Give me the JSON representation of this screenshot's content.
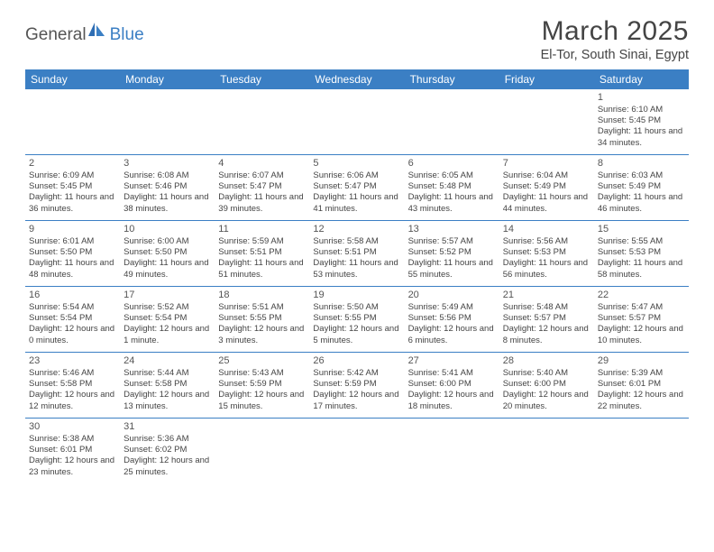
{
  "brand": {
    "name1": "General",
    "name2": "Blue"
  },
  "title": "March 2025",
  "location": "El-Tor, South Sinai, Egypt",
  "colors": {
    "header_bg": "#3b7fc4",
    "header_text": "#ffffff",
    "rule": "#3b7fc4",
    "text": "#444444",
    "background": "#ffffff"
  },
  "weekdays": [
    "Sunday",
    "Monday",
    "Tuesday",
    "Wednesday",
    "Thursday",
    "Friday",
    "Saturday"
  ],
  "weeks": [
    [
      {
        "n": "",
        "t": ""
      },
      {
        "n": "",
        "t": ""
      },
      {
        "n": "",
        "t": ""
      },
      {
        "n": "",
        "t": ""
      },
      {
        "n": "",
        "t": ""
      },
      {
        "n": "",
        "t": ""
      },
      {
        "n": "1",
        "t": "Sunrise: 6:10 AM\nSunset: 5:45 PM\nDaylight: 11 hours and 34 minutes."
      }
    ],
    [
      {
        "n": "2",
        "t": "Sunrise: 6:09 AM\nSunset: 5:45 PM\nDaylight: 11 hours and 36 minutes."
      },
      {
        "n": "3",
        "t": "Sunrise: 6:08 AM\nSunset: 5:46 PM\nDaylight: 11 hours and 38 minutes."
      },
      {
        "n": "4",
        "t": "Sunrise: 6:07 AM\nSunset: 5:47 PM\nDaylight: 11 hours and 39 minutes."
      },
      {
        "n": "5",
        "t": "Sunrise: 6:06 AM\nSunset: 5:47 PM\nDaylight: 11 hours and 41 minutes."
      },
      {
        "n": "6",
        "t": "Sunrise: 6:05 AM\nSunset: 5:48 PM\nDaylight: 11 hours and 43 minutes."
      },
      {
        "n": "7",
        "t": "Sunrise: 6:04 AM\nSunset: 5:49 PM\nDaylight: 11 hours and 44 minutes."
      },
      {
        "n": "8",
        "t": "Sunrise: 6:03 AM\nSunset: 5:49 PM\nDaylight: 11 hours and 46 minutes."
      }
    ],
    [
      {
        "n": "9",
        "t": "Sunrise: 6:01 AM\nSunset: 5:50 PM\nDaylight: 11 hours and 48 minutes."
      },
      {
        "n": "10",
        "t": "Sunrise: 6:00 AM\nSunset: 5:50 PM\nDaylight: 11 hours and 49 minutes."
      },
      {
        "n": "11",
        "t": "Sunrise: 5:59 AM\nSunset: 5:51 PM\nDaylight: 11 hours and 51 minutes."
      },
      {
        "n": "12",
        "t": "Sunrise: 5:58 AM\nSunset: 5:51 PM\nDaylight: 11 hours and 53 minutes."
      },
      {
        "n": "13",
        "t": "Sunrise: 5:57 AM\nSunset: 5:52 PM\nDaylight: 11 hours and 55 minutes."
      },
      {
        "n": "14",
        "t": "Sunrise: 5:56 AM\nSunset: 5:53 PM\nDaylight: 11 hours and 56 minutes."
      },
      {
        "n": "15",
        "t": "Sunrise: 5:55 AM\nSunset: 5:53 PM\nDaylight: 11 hours and 58 minutes."
      }
    ],
    [
      {
        "n": "16",
        "t": "Sunrise: 5:54 AM\nSunset: 5:54 PM\nDaylight: 12 hours and 0 minutes."
      },
      {
        "n": "17",
        "t": "Sunrise: 5:52 AM\nSunset: 5:54 PM\nDaylight: 12 hours and 1 minute."
      },
      {
        "n": "18",
        "t": "Sunrise: 5:51 AM\nSunset: 5:55 PM\nDaylight: 12 hours and 3 minutes."
      },
      {
        "n": "19",
        "t": "Sunrise: 5:50 AM\nSunset: 5:55 PM\nDaylight: 12 hours and 5 minutes."
      },
      {
        "n": "20",
        "t": "Sunrise: 5:49 AM\nSunset: 5:56 PM\nDaylight: 12 hours and 6 minutes."
      },
      {
        "n": "21",
        "t": "Sunrise: 5:48 AM\nSunset: 5:57 PM\nDaylight: 12 hours and 8 minutes."
      },
      {
        "n": "22",
        "t": "Sunrise: 5:47 AM\nSunset: 5:57 PM\nDaylight: 12 hours and 10 minutes."
      }
    ],
    [
      {
        "n": "23",
        "t": "Sunrise: 5:46 AM\nSunset: 5:58 PM\nDaylight: 12 hours and 12 minutes."
      },
      {
        "n": "24",
        "t": "Sunrise: 5:44 AM\nSunset: 5:58 PM\nDaylight: 12 hours and 13 minutes."
      },
      {
        "n": "25",
        "t": "Sunrise: 5:43 AM\nSunset: 5:59 PM\nDaylight: 12 hours and 15 minutes."
      },
      {
        "n": "26",
        "t": "Sunrise: 5:42 AM\nSunset: 5:59 PM\nDaylight: 12 hours and 17 minutes."
      },
      {
        "n": "27",
        "t": "Sunrise: 5:41 AM\nSunset: 6:00 PM\nDaylight: 12 hours and 18 minutes."
      },
      {
        "n": "28",
        "t": "Sunrise: 5:40 AM\nSunset: 6:00 PM\nDaylight: 12 hours and 20 minutes."
      },
      {
        "n": "29",
        "t": "Sunrise: 5:39 AM\nSunset: 6:01 PM\nDaylight: 12 hours and 22 minutes."
      }
    ],
    [
      {
        "n": "30",
        "t": "Sunrise: 5:38 AM\nSunset: 6:01 PM\nDaylight: 12 hours and 23 minutes."
      },
      {
        "n": "31",
        "t": "Sunrise: 5:36 AM\nSunset: 6:02 PM\nDaylight: 12 hours and 25 minutes."
      },
      {
        "n": "",
        "t": ""
      },
      {
        "n": "",
        "t": ""
      },
      {
        "n": "",
        "t": ""
      },
      {
        "n": "",
        "t": ""
      },
      {
        "n": "",
        "t": ""
      }
    ]
  ]
}
